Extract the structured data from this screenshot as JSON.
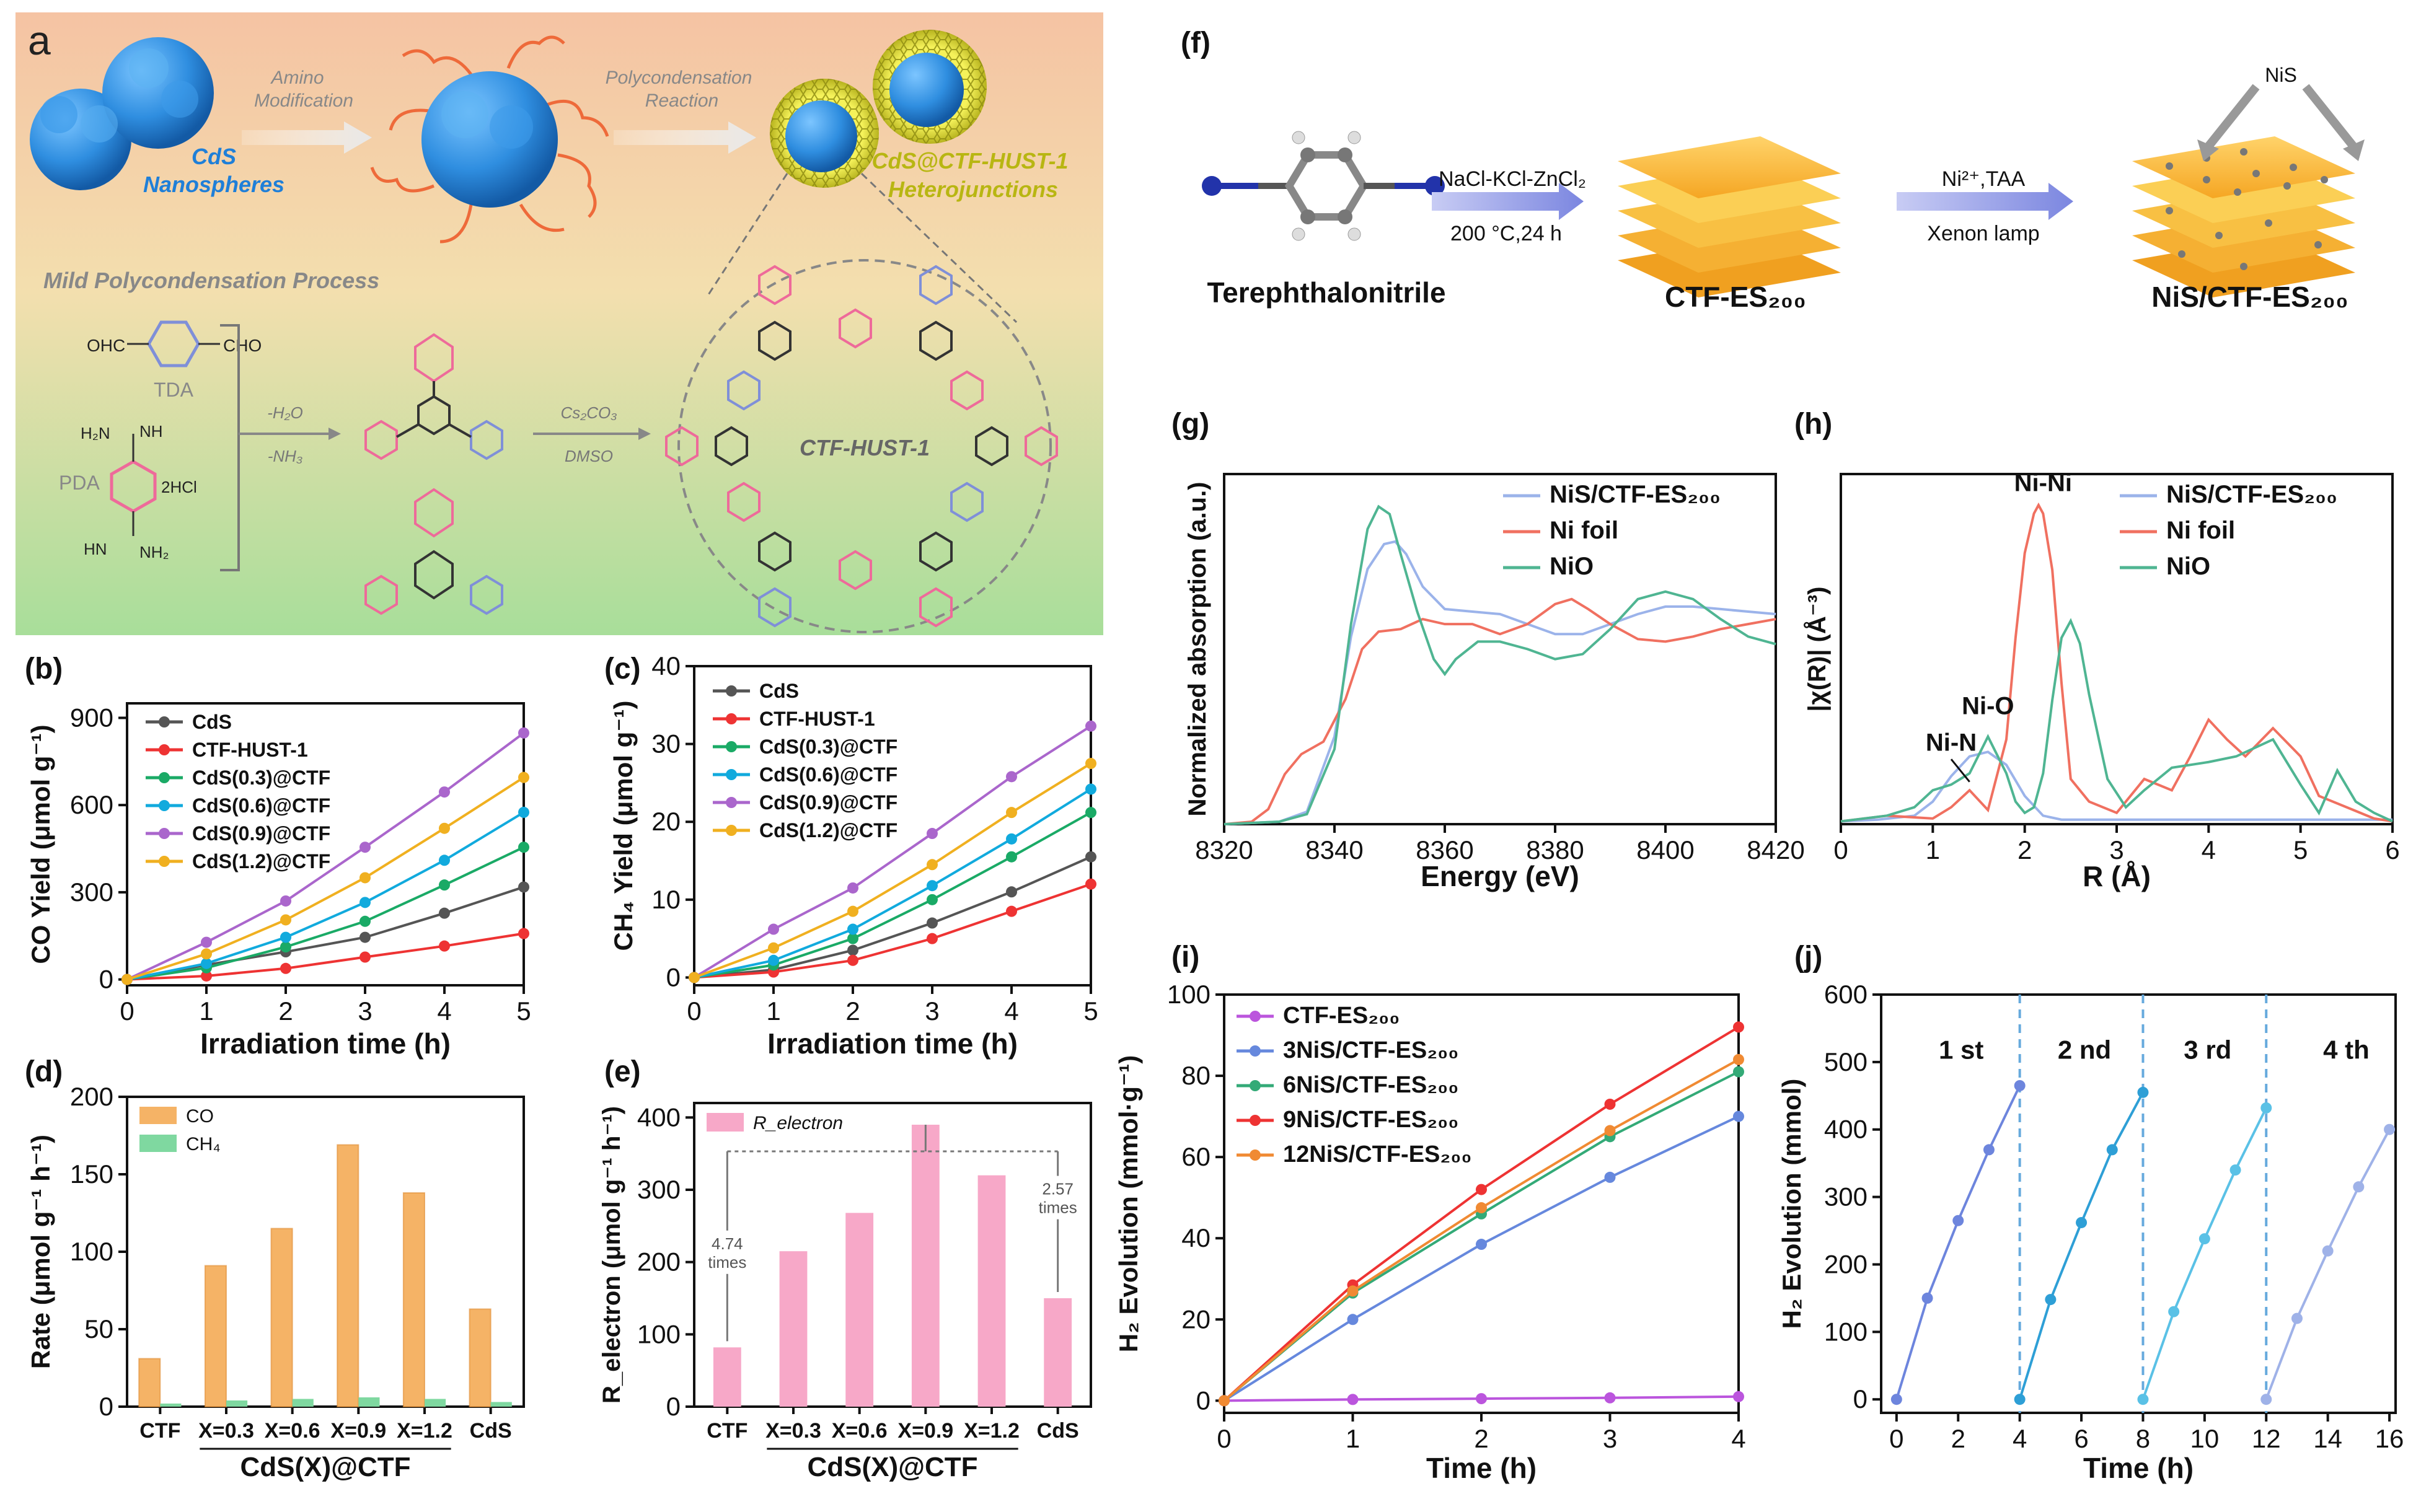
{
  "figure": {
    "panel_labels": {
      "a": "a",
      "b": "(b)",
      "c": "(c)",
      "d": "(d)",
      "e": "(e)",
      "f": "(f)",
      "g": "(g)",
      "h": "(h)",
      "i": "(i)",
      "j": "(j)"
    }
  },
  "scheme_a": {
    "cds_label_line1": "CdS",
    "cds_label_line2": "Nanospheres",
    "arrow1_line1": "Amino",
    "arrow1_line2": "Modification",
    "arrow2_line1": "Polycondensation",
    "arrow2_line2": "Reaction",
    "product_line1": "CdS@CTF-HUST-1",
    "product_line2": "Heterojunctions",
    "process_title": "Mild Polycondensation Process",
    "tda_label": "TDA",
    "pda_label": "PDA",
    "cho": "CHO",
    "ohc": "OHC",
    "hcl": "2HCl",
    "h2n": "H₂N",
    "nh": "NH",
    "hn": "HN",
    "nh2": "NH₂",
    "step1_line1": "-H₂O",
    "step1_line2": "-NH₃",
    "step2_line1": "Cs₂CO₃",
    "step2_line2": "DMSO",
    "ctf_label": "CTF-HUST-1"
  },
  "scheme_f": {
    "reactant": "Terephthalonitrile",
    "step1_top": "NaCl-KCl-ZnCl₂",
    "step1_bottom": "200 °C,24 h",
    "intermediate": "CTF-ES₂₀₀",
    "step2_top": "Ni²⁺,TAA",
    "step2_bottom": "Xenon lamp",
    "product": "NiS/CTF-ES₂₀₀",
    "nis_label": "NiS"
  },
  "colors": {
    "cds": "#555555",
    "ctf": "#ee3333",
    "x03": "#1aaa66",
    "x06": "#11aadd",
    "x09": "#aa66cc",
    "x12": "#f0b020",
    "co_bar": "#f5b366",
    "ch4_bar": "#7fd8a0",
    "relec_bar": "#f7a8c8",
    "nis": "#9bb3ea",
    "nifoil": "#f07060",
    "nio": "#4fb592",
    "ctfes": "#bb55dd",
    "n3": "#6688dd",
    "n6": "#33aa77",
    "n9": "#ee3333",
    "n12": "#f08a33",
    "cycle": "#6699dd"
  },
  "chart_data": [
    {
      "id": "b",
      "type": "line",
      "xlabel": "Irradiation time (h)",
      "ylabel": "CO Yield (μmol g⁻¹)",
      "xlim": [
        0,
        5
      ],
      "ylim": [
        -20,
        950
      ],
      "xticks": [
        0,
        1,
        2,
        3,
        4,
        5
      ],
      "yticks": [
        0,
        300,
        600,
        900
      ],
      "x": [
        0,
        1,
        2,
        3,
        4,
        5
      ],
      "series": [
        {
          "name": "CdS",
          "color": "#555555",
          "values": [
            0,
            50,
            95,
            145,
            228,
            318
          ]
        },
        {
          "name": "CTF-HUST-1",
          "color": "#ee3333",
          "values": [
            0,
            12,
            38,
            77,
            115,
            158
          ]
        },
        {
          "name": "CdS(0.3)@CTF",
          "color": "#1aaa66",
          "values": [
            0,
            40,
            112,
            200,
            325,
            455
          ]
        },
        {
          "name": "CdS(0.6)@CTF",
          "color": "#11aadd",
          "values": [
            0,
            55,
            145,
            265,
            410,
            575
          ]
        },
        {
          "name": "CdS(0.9)@CTF",
          "color": "#aa66cc",
          "values": [
            0,
            128,
            270,
            455,
            645,
            848
          ]
        },
        {
          "name": "CdS(1.2)@CTF",
          "color": "#f0b020",
          "values": [
            0,
            88,
            205,
            350,
            520,
            695
          ]
        }
      ]
    },
    {
      "id": "c",
      "type": "line",
      "xlabel": "Irradiation time (h)",
      "ylabel": "CH₄ Yield (μmol g⁻¹)",
      "xlim": [
        0,
        5
      ],
      "ylim": [
        -1,
        40
      ],
      "xticks": [
        0,
        1,
        2,
        3,
        4,
        5
      ],
      "yticks": [
        0,
        10,
        20,
        30,
        40
      ],
      "x": [
        0,
        1,
        2,
        3,
        4,
        5
      ],
      "series": [
        {
          "name": "CdS",
          "color": "#555555",
          "values": [
            0,
            1.0,
            3.5,
            7.0,
            11.0,
            15.5
          ]
        },
        {
          "name": "CTF-HUST-1",
          "color": "#ee3333",
          "values": [
            0,
            0.7,
            2.2,
            5.0,
            8.5,
            12.0
          ]
        },
        {
          "name": "CdS(0.3)@CTF",
          "color": "#1aaa66",
          "values": [
            0,
            1.6,
            5.0,
            10.0,
            15.5,
            21.2
          ]
        },
        {
          "name": "CdS(0.6)@CTF",
          "color": "#11aadd",
          "values": [
            0,
            2.2,
            6.2,
            11.8,
            17.8,
            24.2
          ]
        },
        {
          "name": "CdS(0.9)@CTF",
          "color": "#aa66cc",
          "values": [
            0,
            6.2,
            11.5,
            18.5,
            25.8,
            32.3
          ]
        },
        {
          "name": "CdS(1.2)@CTF",
          "color": "#f0b020",
          "values": [
            0,
            3.8,
            8.5,
            14.5,
            21.2,
            27.5
          ]
        }
      ]
    },
    {
      "id": "d",
      "type": "bar",
      "ylabel": "Rate (μmol g⁻¹ h⁻¹)",
      "ylim": [
        0,
        200
      ],
      "yticks": [
        0,
        50,
        100,
        150,
        200
      ],
      "categories": [
        "CTF",
        "X=0.3",
        "X=0.6",
        "X=0.9",
        "X=1.2",
        "CdS"
      ],
      "group_label": "CdS(X)@CTF",
      "series": [
        {
          "name": "CO",
          "color": "#f5b366",
          "values": [
            31,
            91,
            115,
            169,
            138,
            63
          ]
        },
        {
          "name": "CH₄",
          "color": "#7fd8a0",
          "values": [
            2,
            4,
            5,
            6,
            5,
            3
          ]
        }
      ]
    },
    {
      "id": "e",
      "type": "bar",
      "ylabel": "R_electron (μmol g⁻¹ h⁻¹)",
      "legend": "R_electron",
      "ylim": [
        0,
        420
      ],
      "yticks": [
        0,
        100,
        200,
        300,
        400
      ],
      "categories": [
        "CTF",
        "X=0.3",
        "X=0.6",
        "X=0.9",
        "X=1.2",
        "CdS"
      ],
      "group_label": "CdS(X)@CTF",
      "series": [
        {
          "name": "R_electron",
          "color": "#f7a8c8",
          "values": [
            82,
            215,
            268,
            390,
            320,
            150
          ]
        }
      ],
      "annotations": [
        {
          "text_line1": "4.74",
          "text_line2": "times"
        },
        {
          "text_line1": "2.57",
          "text_line2": "times"
        }
      ]
    },
    {
      "id": "g",
      "type": "line",
      "xlabel": "Energy (eV)",
      "ylabel": "Normalized absorption (a.u.)",
      "xlim": [
        8320,
        8420
      ],
      "ylim": [
        0,
        1.4
      ],
      "xticks": [
        8320,
        8340,
        8360,
        8380,
        8400,
        8420
      ],
      "series": [
        {
          "name": "NiS/CTF-ES₂₀₀",
          "color": "#9bb3ea",
          "x": [
            8320,
            8330,
            8335,
            8340,
            8343,
            8346,
            8349,
            8351,
            8353,
            8356,
            8360,
            8365,
            8370,
            8375,
            8380,
            8385,
            8390,
            8395,
            8400,
            8405,
            8410,
            8415,
            8420
          ],
          "values": [
            0,
            0.01,
            0.05,
            0.35,
            0.75,
            1.02,
            1.12,
            1.13,
            1.08,
            0.95,
            0.86,
            0.85,
            0.84,
            0.8,
            0.76,
            0.76,
            0.8,
            0.84,
            0.87,
            0.87,
            0.86,
            0.85,
            0.84
          ]
        },
        {
          "name": "Ni foil",
          "color": "#f07060",
          "x": [
            8320,
            8325,
            8328,
            8331,
            8334,
            8338,
            8342,
            8345,
            8348,
            8352,
            8356,
            8360,
            8365,
            8370,
            8375,
            8380,
            8383,
            8386,
            8390,
            8395,
            8400,
            8405,
            8410,
            8415,
            8420
          ],
          "values": [
            0,
            0.01,
            0.06,
            0.2,
            0.28,
            0.33,
            0.5,
            0.7,
            0.77,
            0.78,
            0.82,
            0.8,
            0.8,
            0.76,
            0.8,
            0.88,
            0.9,
            0.86,
            0.8,
            0.74,
            0.73,
            0.75,
            0.78,
            0.8,
            0.82
          ]
        },
        {
          "name": "NiO",
          "color": "#4fb592",
          "x": [
            8320,
            8330,
            8335,
            8340,
            8343,
            8346,
            8348,
            8350,
            8352,
            8355,
            8358,
            8360,
            8362,
            8366,
            8370,
            8375,
            8380,
            8385,
            8390,
            8395,
            8400,
            8405,
            8410,
            8415,
            8420
          ],
          "values": [
            0,
            0.01,
            0.04,
            0.3,
            0.8,
            1.18,
            1.27,
            1.24,
            1.08,
            0.85,
            0.66,
            0.6,
            0.66,
            0.73,
            0.73,
            0.7,
            0.66,
            0.68,
            0.78,
            0.9,
            0.93,
            0.9,
            0.82,
            0.75,
            0.72
          ]
        }
      ]
    },
    {
      "id": "h",
      "type": "line",
      "xlabel": "R (Å)",
      "ylabel": "|χ(R)|  (Å⁻³)",
      "xlim": [
        0,
        6
      ],
      "ylim": [
        0,
        6.2
      ],
      "xticks": [
        0,
        1,
        2,
        3,
        4,
        5,
        6
      ],
      "series": [
        {
          "name": "NiS/CTF-ES₂₀₀",
          "color": "#9bb3ea",
          "x": [
            0,
            0.4,
            0.8,
            1.0,
            1.2,
            1.4,
            1.6,
            1.8,
            2.0,
            2.2,
            2.4,
            3,
            4,
            5,
            6
          ],
          "values": [
            0.05,
            0.08,
            0.15,
            0.4,
            0.85,
            1.2,
            1.28,
            1.05,
            0.5,
            0.15,
            0.08,
            0.08,
            0.08,
            0.08,
            0.08
          ]
        },
        {
          "name": "Ni foil",
          "color": "#f07060",
          "x": [
            0,
            0.5,
            1.0,
            1.2,
            1.4,
            1.6,
            1.8,
            1.9,
            2.0,
            2.1,
            2.15,
            2.2,
            2.3,
            2.4,
            2.5,
            2.7,
            3.0,
            3.3,
            3.6,
            3.8,
            4.0,
            4.2,
            4.4,
            4.7,
            5.0,
            5.2,
            5.5,
            5.8,
            6.0
          ],
          "values": [
            0.05,
            0.15,
            0.1,
            0.3,
            0.6,
            0.25,
            1.5,
            3.3,
            4.8,
            5.5,
            5.65,
            5.5,
            4.5,
            2.5,
            0.8,
            0.4,
            0.2,
            0.8,
            0.6,
            1.2,
            1.85,
            1.5,
            1.2,
            1.7,
            1.2,
            0.5,
            0.3,
            0.1,
            0.05
          ]
        },
        {
          "name": "NiO",
          "color": "#4fb592",
          "x": [
            0,
            0.5,
            0.8,
            1.0,
            1.2,
            1.4,
            1.6,
            1.8,
            1.9,
            2.0,
            2.1,
            2.2,
            2.3,
            2.4,
            2.5,
            2.6,
            2.7,
            2.9,
            3.1,
            3.3,
            3.6,
            4.0,
            4.3,
            4.7,
            5.0,
            5.2,
            5.4,
            5.6,
            5.8,
            6.0
          ],
          "values": [
            0.05,
            0.15,
            0.3,
            0.6,
            0.7,
            0.9,
            1.55,
            0.9,
            0.4,
            0.2,
            0.3,
            0.9,
            2.2,
            3.3,
            3.6,
            3.2,
            2.3,
            0.8,
            0.3,
            0.6,
            1.0,
            1.1,
            1.2,
            1.5,
            0.7,
            0.2,
            0.95,
            0.4,
            0.2,
            0.05
          ]
        }
      ],
      "annotations": [
        "Ni-Ni",
        "Ni-O",
        "Ni-N"
      ]
    },
    {
      "id": "i",
      "type": "line",
      "xlabel": "Time (h)",
      "ylabel": "H₂ Evolution (mmol·g⁻¹)",
      "xlim": [
        0,
        4
      ],
      "ylim": [
        -3,
        100
      ],
      "xticks": [
        0,
        1,
        2,
        3,
        4
      ],
      "yticks": [
        0,
        20,
        40,
        60,
        80,
        100
      ],
      "x": [
        0,
        1,
        2,
        3,
        4
      ],
      "series": [
        {
          "name": "CTF-ES₂₀₀",
          "color": "#bb55dd",
          "values": [
            0,
            0.3,
            0.5,
            0.7,
            1.0
          ]
        },
        {
          "name": "3NiS/CTF-ES₂₀₀",
          "color": "#6688dd",
          "values": [
            0,
            20,
            38.5,
            55,
            70
          ]
        },
        {
          "name": "6NiS/CTF-ES₂₀₀",
          "color": "#33aa77",
          "values": [
            0,
            26.5,
            46,
            65,
            81
          ]
        },
        {
          "name": "9NiS/CTF-ES₂₀₀",
          "color": "#ee3333",
          "values": [
            0,
            28.5,
            52,
            73,
            92
          ]
        },
        {
          "name": "12NiS/CTF-ES₂₀₀",
          "color": "#f08a33",
          "values": [
            0,
            27,
            47.5,
            66.5,
            84
          ]
        }
      ]
    },
    {
      "id": "j",
      "type": "line",
      "xlabel": "Time (h)",
      "ylabel": "H₂ Evolution (mmol)",
      "xlim": [
        -0.5,
        16.2
      ],
      "ylim": [
        -20,
        600
      ],
      "xticks": [
        0,
        2,
        4,
        6,
        8,
        10,
        12,
        14,
        16
      ],
      "yticks": [
        0,
        100,
        200,
        300,
        400,
        500,
        600
      ],
      "cycle_lines": [
        4,
        8,
        12
      ],
      "cycle_labels": [
        "1 st",
        "2 nd",
        "3 rd",
        "4 th"
      ],
      "series": [
        {
          "name": "cycle 1",
          "color": "#6d85dd",
          "x": [
            0,
            1,
            2,
            3,
            4
          ],
          "values": [
            0,
            150,
            265,
            370,
            465
          ]
        },
        {
          "name": "cycle 2",
          "color": "#2e9fd6",
          "x": [
            4,
            5,
            6,
            7,
            8
          ],
          "values": [
            0,
            148,
            262,
            370,
            455
          ]
        },
        {
          "name": "cycle 3",
          "color": "#5ac1e6",
          "x": [
            8,
            9,
            10,
            11,
            12
          ],
          "values": [
            0,
            130,
            238,
            340,
            432
          ]
        },
        {
          "name": "cycle 4",
          "color": "#9fb2e8",
          "x": [
            12,
            13,
            14,
            15,
            16
          ],
          "values": [
            0,
            120,
            220,
            315,
            400
          ]
        }
      ]
    }
  ]
}
